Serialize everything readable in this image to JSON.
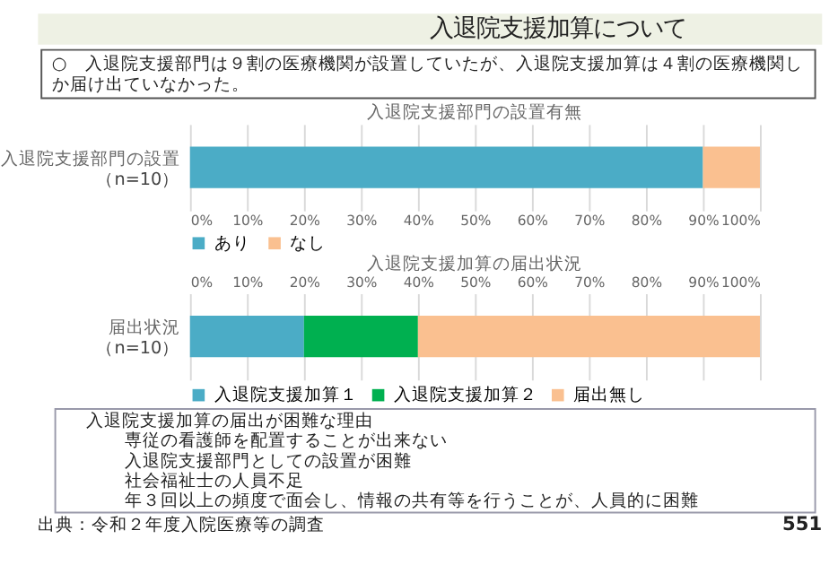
{
  "chart_data": [
    {
      "type": "bar",
      "orientation": "horizontal",
      "stacked": true,
      "title": "入退院支援部門の設置有無",
      "categories": [
        "入退院支援部門の設置"
      ],
      "series": [
        {
          "name": "あり",
          "color": "#4bacc6",
          "values": [
            90
          ]
        },
        {
          "name": "なし",
          "color": "#fac090",
          "values": [
            10
          ]
        }
      ],
      "xlim": [
        0,
        100
      ],
      "xticks": [
        {
          "value": 0,
          "label": "0%"
        },
        {
          "value": 10,
          "label": "10%"
        },
        {
          "value": 20,
          "label": "20%"
        },
        {
          "value": 30,
          "label": "30%"
        },
        {
          "value": 40,
          "label": "40%"
        },
        {
          "value": 50,
          "label": "50%"
        },
        {
          "value": 60,
          "label": "60%"
        },
        {
          "value": 70,
          "label": "70%"
        },
        {
          "value": 80,
          "label": "80%"
        },
        {
          "value": 90,
          "label": "90%"
        },
        {
          "value": 100,
          "label": "100%"
        }
      ],
      "grid": "x",
      "legend": "bottom",
      "annotations": [
        "（n=10）"
      ]
    },
    {
      "type": "bar",
      "orientation": "horizontal",
      "stacked": true,
      "title": "入退院支援加算の届出状況",
      "categories": [
        "届出状況"
      ],
      "series": [
        {
          "name": "入退院支援加算１",
          "color": "#4bacc6",
          "values": [
            20
          ],
          "axis": "x2"
        },
        {
          "name": "入退院支援加算２",
          "color": "#00b050",
          "values": [
            20
          ],
          "axis": "x2"
        },
        {
          "name": "届出無し",
          "color": "#fac090",
          "values": [
            60
          ],
          "axis": "x2"
        }
      ],
      "x2lim": [
        0,
        100
      ],
      "x2ticks": [
        {
          "value": 0,
          "label": "0%"
        },
        {
          "value": 10,
          "label": "10%"
        },
        {
          "value": 20,
          "label": "20%"
        },
        {
          "value": 30,
          "label": "30%"
        },
        {
          "value": 40,
          "label": "40%"
        },
        {
          "value": 50,
          "label": "50%"
        },
        {
          "value": 60,
          "label": "60%"
        },
        {
          "value": 70,
          "label": "70%"
        },
        {
          "value": 80,
          "label": "80%"
        },
        {
          "value": 90,
          "label": "90%"
        },
        {
          "value": 100,
          "label": "100%"
        }
      ],
      "grid": "x",
      "legend": "bottom",
      "annotations": [
        "（n=10）",
        "入退院支援加算について",
        "○　入退院支援部門は９割の医療機関が設置していたが、入退院支援加算は４割の医療機関しか届け出ていなかった。",
        "入退院支援加算の届出が困難な理由",
        "専従の看護師を配置することが出来ない",
        "入退院支援部門としての設置が困難",
        "社会福祉士の人員不足",
        "年３回以上の頻度で面会し、情報の共有等を行うことが、人員的に困難",
        "出典：令和２年度入院医療等の調査",
        "551"
      ]
    }
  ]
}
